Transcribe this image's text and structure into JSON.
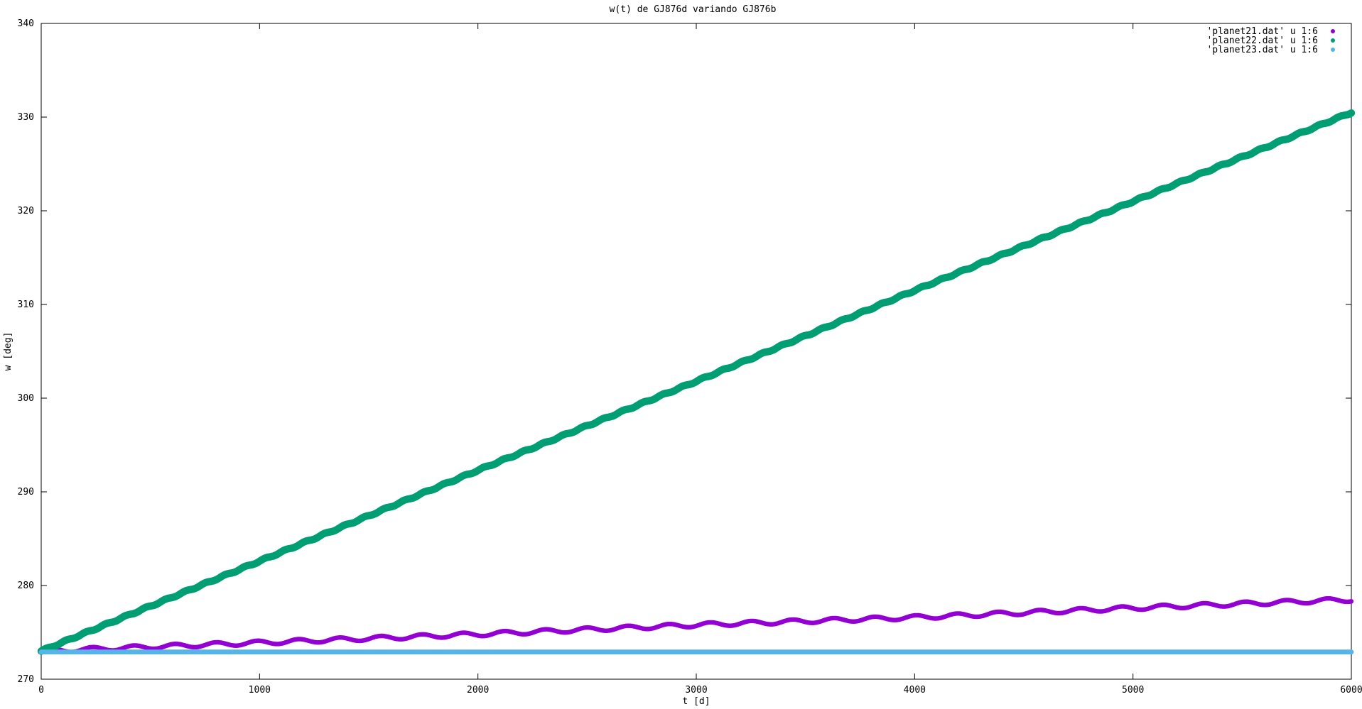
{
  "chart_data": {
    "type": "scatter",
    "title": "w(t) de GJ876d variando GJ876b",
    "xlabel": "t [d]",
    "ylabel": "w [deg]",
    "xlim": [
      0,
      6000
    ],
    "ylim": [
      270,
      340
    ],
    "xticks": [
      0,
      1000,
      2000,
      3000,
      4000,
      5000,
      6000
    ],
    "yticks": [
      270,
      280,
      290,
      300,
      310,
      320,
      330,
      340
    ],
    "grid": false,
    "legend_position": "top-right",
    "series": [
      {
        "name": "'planet21.dat' u 1:6",
        "color": "#9400d3",
        "x": [
          0,
          1000,
          2000,
          3000,
          4000,
          5000,
          6000
        ],
        "y": [
          273.0,
          273.9,
          274.8,
          275.8,
          276.6,
          277.6,
          278.5
        ]
      },
      {
        "name": "'planet22.dat' u 1:6",
        "color": "#009e73",
        "x": [
          0,
          1000,
          2000,
          3000,
          4000,
          5000,
          6000
        ],
        "y": [
          273.0,
          282.6,
          292.3,
          301.8,
          311.5,
          321.0,
          330.5
        ]
      },
      {
        "name": "'planet23.dat' u 1:6",
        "color": "#56b4e9",
        "x": [
          0,
          1000,
          2000,
          3000,
          4000,
          5000,
          6000
        ],
        "y": [
          272.9,
          272.9,
          272.9,
          272.9,
          272.9,
          272.9,
          272.9
        ]
      }
    ]
  }
}
